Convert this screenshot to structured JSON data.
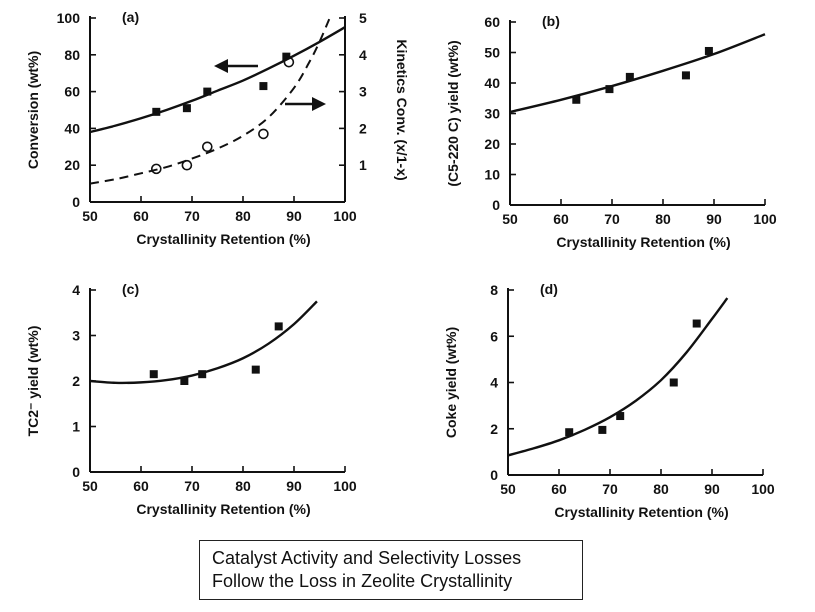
{
  "caption": {
    "line1": "Catalyst Activity and Selectivity Losses",
    "line2": "Follow the Loss in Zeolite Crystallinity"
  },
  "chart_data": [
    {
      "type": "scatter",
      "panel_label": "(a)",
      "xlabel": "Crystallinity Retention (%)",
      "ylabel": "Conversion (wt%)",
      "ylabel_right": "Kinetics Conv. (x/1-x)",
      "xlim": [
        50,
        100
      ],
      "ylim": [
        0,
        100
      ],
      "ylim_right": [
        0,
        5
      ],
      "xticks": [
        50,
        60,
        70,
        80,
        90,
        100
      ],
      "yticks": [
        0,
        20,
        40,
        60,
        80,
        100
      ],
      "yticks_right": [
        1,
        2,
        3,
        4,
        5
      ],
      "series": [
        {
          "marker": "square",
          "axis": "left",
          "x": [
            63,
            69,
            73,
            84,
            88.5
          ],
          "y": [
            49,
            51,
            60,
            63,
            79
          ]
        },
        {
          "marker": "circle",
          "axis": "right",
          "x": [
            63,
            69,
            73,
            84,
            89
          ],
          "y": [
            0.9,
            1.0,
            1.5,
            1.85,
            3.8
          ]
        },
        {
          "line": "solid",
          "axis": "left",
          "x": [
            50,
            55,
            60,
            65,
            70,
            75,
            80,
            85,
            90,
            95,
            100
          ],
          "y": [
            38,
            41.5,
            45.5,
            50,
            55,
            60.5,
            66,
            72.5,
            79.5,
            87,
            95
          ]
        },
        {
          "line": "dashed",
          "axis": "right",
          "x": [
            50,
            55,
            60,
            65,
            70,
            75,
            80,
            85,
            90,
            93,
            95,
            97
          ],
          "y": [
            0.5,
            0.62,
            0.78,
            0.95,
            1.18,
            1.45,
            1.8,
            2.3,
            3.1,
            3.8,
            4.35,
            5.0
          ]
        }
      ],
      "annotations": [
        "left-pointing arrow toward conversion axis",
        "right-pointing arrow toward kinetics axis"
      ]
    },
    {
      "type": "scatter",
      "panel_label": "(b)",
      "xlabel": "Crystallinity Retention (%)",
      "ylabel": "(C5-220 C) yield (wt%)",
      "xlim": [
        50,
        100
      ],
      "ylim": [
        0,
        60
      ],
      "xticks": [
        50,
        60,
        70,
        80,
        90,
        100
      ],
      "yticks": [
        0,
        10,
        20,
        30,
        40,
        50,
        60
      ],
      "series": [
        {
          "marker": "square",
          "x": [
            63,
            69.5,
            73.5,
            84.5,
            89
          ],
          "y": [
            34.5,
            38,
            42,
            42.5,
            50.5
          ]
        },
        {
          "line": "solid",
          "x": [
            50,
            60,
            70,
            80,
            90,
            100
          ],
          "y": [
            30.5,
            34.5,
            39,
            44,
            49.5,
            56
          ]
        }
      ]
    },
    {
      "type": "scatter",
      "panel_label": "(c)",
      "xlabel": "Crystallinity Retention (%)",
      "ylabel": "TC2⁻ yield (wt%)",
      "xlim": [
        50,
        100
      ],
      "ylim": [
        0,
        4
      ],
      "xticks": [
        50,
        60,
        70,
        80,
        90,
        100
      ],
      "yticks": [
        0,
        1,
        2,
        3,
        4
      ],
      "series": [
        {
          "marker": "square",
          "x": [
            62.5,
            68.5,
            72,
            82.5,
            87
          ],
          "y": [
            2.15,
            2.0,
            2.15,
            2.25,
            3.2
          ]
        },
        {
          "line": "solid",
          "x": [
            50,
            55,
            60,
            65,
            70,
            75,
            80,
            85,
            90,
            94.5
          ],
          "y": [
            2.0,
            1.96,
            1.97,
            2.02,
            2.12,
            2.28,
            2.5,
            2.82,
            3.25,
            3.75
          ]
        }
      ]
    },
    {
      "type": "scatter",
      "panel_label": "(d)",
      "xlabel": "Crystallinity Retention (%)",
      "ylabel": "Coke yield (wt%)",
      "xlim": [
        50,
        100
      ],
      "ylim": [
        0,
        8
      ],
      "xticks": [
        50,
        60,
        70,
        80,
        90,
        100
      ],
      "yticks": [
        0,
        2,
        4,
        6,
        8
      ],
      "series": [
        {
          "marker": "square",
          "x": [
            62,
            68.5,
            72,
            82.5,
            87
          ],
          "y": [
            1.85,
            1.95,
            2.55,
            4.0,
            6.55
          ]
        },
        {
          "line": "solid",
          "x": [
            50,
            55,
            60,
            65,
            70,
            75,
            80,
            85,
            90,
            93
          ],
          "y": [
            0.85,
            1.15,
            1.5,
            1.95,
            2.5,
            3.2,
            4.1,
            5.3,
            6.75,
            7.65
          ]
        }
      ]
    }
  ]
}
